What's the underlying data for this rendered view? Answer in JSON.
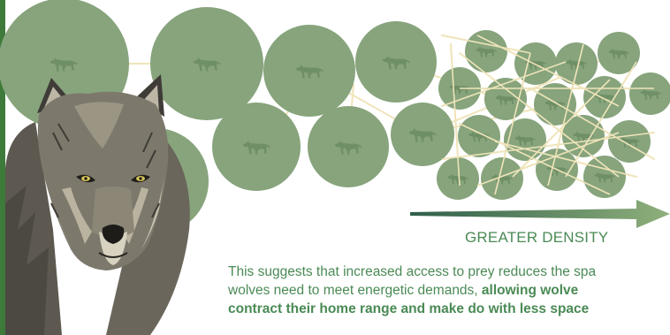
{
  "figure": {
    "arrow_label": "GREATER DENSITY",
    "caption": {
      "line1": "This suggests that increased access to prey reduces the spa",
      "line2_plain": "wolves need to meet energetic demands, ",
      "line2_bold": "allowing wolve",
      "line3_bold": "contract their home range and make do with less space"
    },
    "colors": {
      "circle_fill": "#87a47c",
      "wolf_silhouette": "#6f8f66",
      "connector": "#efe4ba",
      "text_green": "#4a8a55",
      "left_edge": "#3e7a3a"
    },
    "icons": {
      "territory": "wolf-silhouette-icon",
      "portrait": "gray-wolf-portrait"
    }
  }
}
